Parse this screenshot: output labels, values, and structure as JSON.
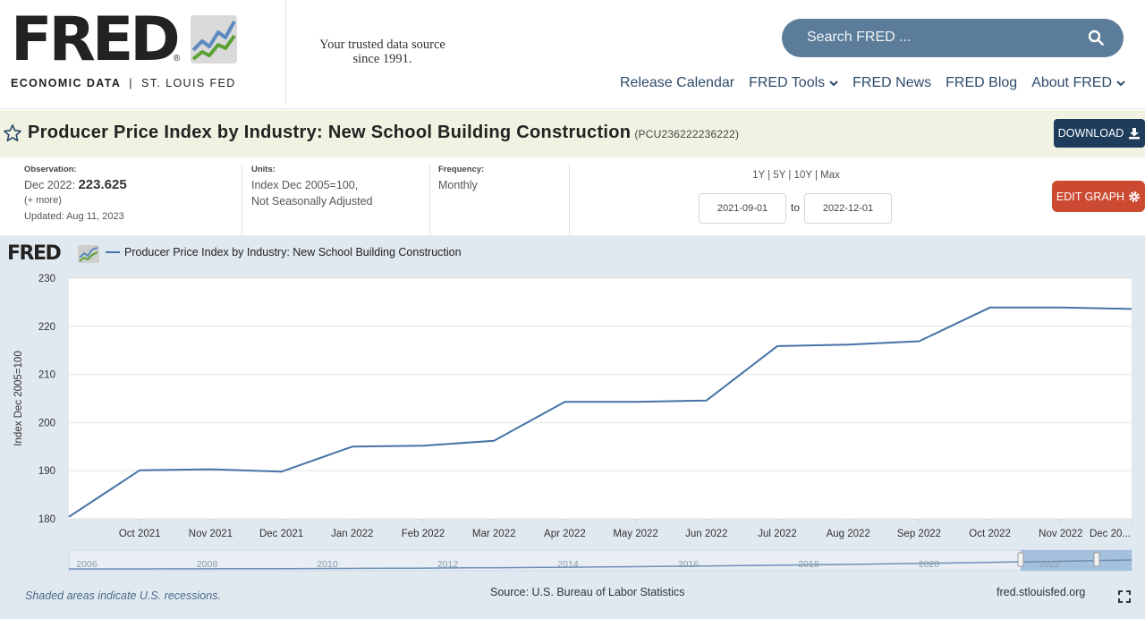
{
  "header": {
    "logo_word": "FRED",
    "logo_reg": "®",
    "tagline_bold": "ECONOMIC DATA",
    "tagline_sep": "|",
    "tagline_rest": "ST. LOUIS FED",
    "trusted_line1": "Your trusted data source",
    "trusted_line2": "since 1991.",
    "search_placeholder": "Search FRED ...",
    "nav": [
      {
        "label": "Release Calendar",
        "dropdown": false
      },
      {
        "label": "FRED Tools",
        "dropdown": true
      },
      {
        "label": "FRED News",
        "dropdown": false
      },
      {
        "label": "FRED Blog",
        "dropdown": false
      },
      {
        "label": "About FRED",
        "dropdown": true
      }
    ]
  },
  "series": {
    "title": "Producer Price Index by Industry: New School Building Construction",
    "id": "(PCU236222236222)",
    "download_label": "DOWNLOAD"
  },
  "meta": {
    "observation_label": "Observation:",
    "observation_date": "Dec 2022:",
    "observation_value": "223.625",
    "more_link": "(+ more)",
    "updated": "Updated: Aug 11, 2023",
    "units_label": "Units:",
    "units_line1": "Index Dec 2005=100,",
    "units_line2": "Not Seasonally Adjusted",
    "frequency_label": "Frequency:",
    "frequency_value": "Monthly",
    "range_links": "1Y | 5Y | 10Y | Max",
    "start_date": "2021-09-01",
    "to_word": "to",
    "end_date": "2022-12-01",
    "edit_label": "EDIT GRAPH"
  },
  "graph": {
    "logo_word": "FRED",
    "recession_note": "Shaded areas indicate U.S. recessions.",
    "source_note": "Source: U.S. Bureau of Labor Statistics",
    "site_note": "fred.stlouisfed.org"
  },
  "colors": {
    "line": "#4572a7",
    "header_search": "#5c7d9a",
    "download": "#1e3d5c",
    "edit": "#cc4a32",
    "panel": "#e1e9f0"
  },
  "chart_data": {
    "type": "line",
    "legend": "Producer Price Index by Industry: New School Building Construction",
    "ylabel": "Index Dec 2005=100",
    "ylim": [
      180,
      230
    ],
    "yticks": [
      180,
      190,
      200,
      210,
      220,
      230
    ],
    "grid": true,
    "categories": [
      "Sep 2021",
      "Oct 2021",
      "Nov 2021",
      "Dec 2021",
      "Jan 2022",
      "Feb 2022",
      "Mar 2022",
      "Apr 2022",
      "May 2022",
      "Jun 2022",
      "Jul 2022",
      "Aug 2022",
      "Sep 2022",
      "Oct 2022",
      "Nov 2022",
      "Dec 2022"
    ],
    "tick_labels": [
      "Oct 2021",
      "Nov 2021",
      "Dec 2021",
      "Jan 2022",
      "Feb 2022",
      "Mar 2022",
      "Apr 2022",
      "May 2022",
      "Jun 2022",
      "Jul 2022",
      "Aug 2022",
      "Sep 2022",
      "Oct 2022",
      "Nov 2022",
      "Dec 20..."
    ],
    "series": [
      {
        "name": "Producer Price Index by Industry: New School Building Construction",
        "values": [
          180.4,
          190.1,
          190.3,
          189.8,
          195.0,
          195.2,
          196.2,
          204.3,
          204.3,
          204.6,
          215.9,
          216.2,
          216.9,
          223.9,
          223.9,
          223.6
        ]
      }
    ],
    "navigator_ticks": [
      "2006",
      "2008",
      "2010",
      "2012",
      "2014",
      "2016",
      "2018",
      "2020",
      "2022"
    ]
  }
}
